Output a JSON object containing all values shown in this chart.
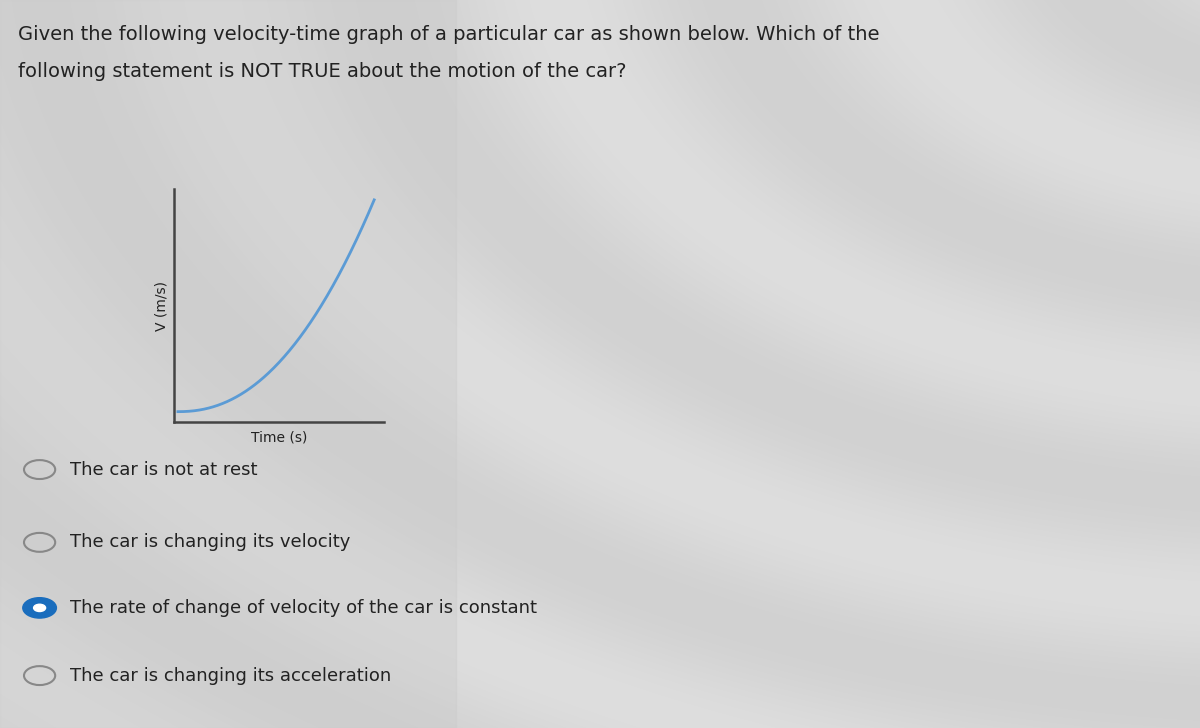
{
  "title_line1": "Given the following velocity-time graph of a particular car as shown below. Which of the",
  "title_line2": "following statement is NOT TRUE about the motion of the car?",
  "graph_ylabel": "V (m/s)",
  "graph_xlabel": "Time (s)",
  "curve_color": "#5b9bd5",
  "bg_color_base": "#c8c8c8",
  "bg_color_light": "#d4d4d4",
  "options": [
    {
      "text": "The car is not at rest",
      "selected": false
    },
    {
      "text": "The car is changing its velocity",
      "selected": false
    },
    {
      "text": "The rate of change of velocity of the car is constant",
      "selected": true
    },
    {
      "text": "The car is changing its acceleration",
      "selected": false
    }
  ],
  "radio_color_empty": "#888888",
  "radio_color_filled": "#1a6dbd",
  "text_color": "#222222",
  "font_size_title": 14,
  "font_size_options": 13,
  "font_size_axis_label": 10,
  "graph_axes_color": "#444444"
}
